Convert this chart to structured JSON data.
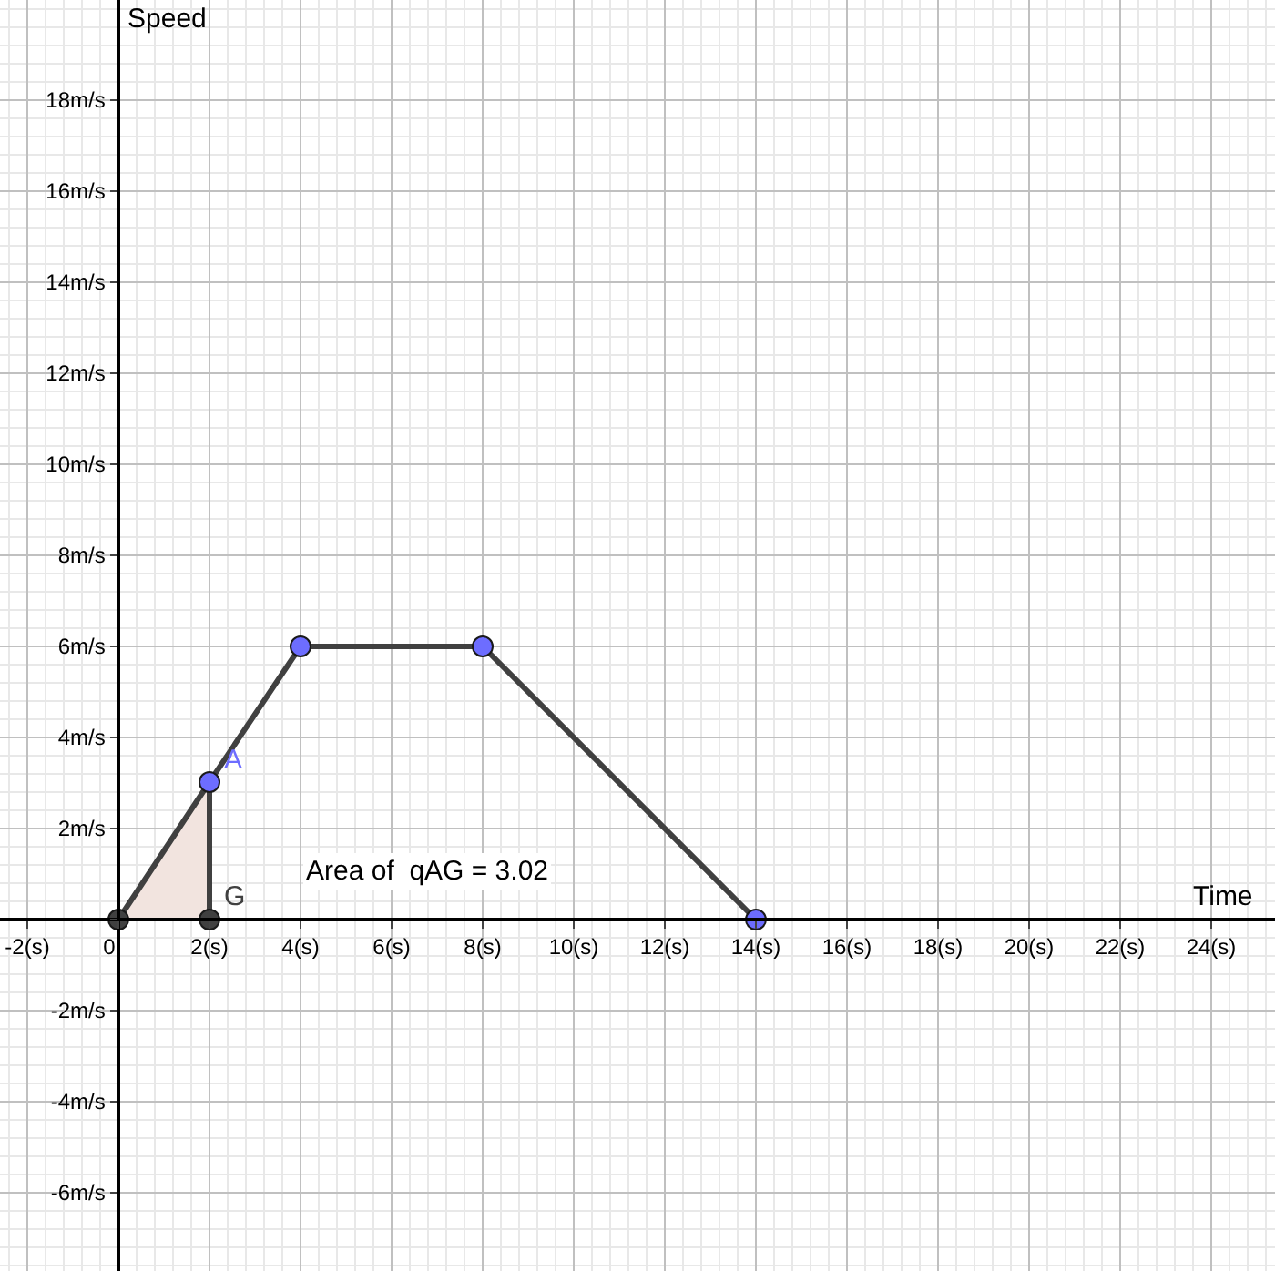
{
  "chart_data": {
    "type": "line",
    "xlabel": "Time",
    "ylabel": "Speed",
    "series": [
      {
        "type": "area",
        "color": "#f2e4df",
        "x": [
          0,
          2,
          2
        ],
        "values": [
          0,
          3.02,
          0
        ]
      },
      {
        "color": "#404040",
        "x": [
          0,
          2,
          4,
          8,
          14
        ],
        "values": [
          0,
          3.02,
          6,
          6,
          0
        ]
      },
      {
        "color": "#404040",
        "x": [
          2,
          2
        ],
        "values": [
          3.02,
          0
        ]
      },
      {
        "type": "scatter",
        "x": [
          0,
          2,
          4,
          8,
          14,
          2
        ],
        "values": [
          0,
          3.02,
          6,
          6,
          0,
          0
        ],
        "colors": [
          "#404040",
          "#6d6dff",
          "#6d6dff",
          "#6d6dff",
          "#6d6dff",
          "#404040"
        ],
        "marker": "circle"
      }
    ],
    "annotations": [
      {
        "text": "A",
        "x": 2,
        "y": 3.02
      },
      {
        "text": "G",
        "x": 2,
        "y": 0
      },
      "Area of  qAG = 3.02"
    ],
    "xlim": [
      -2.6,
      25.4
    ],
    "ylim": [
      -7.72,
      20.2
    ],
    "xticks": [
      {
        "value": -2,
        "label": "-2(s)"
      },
      0,
      {
        "value": 2,
        "label": "2(s)"
      },
      {
        "value": 4,
        "label": "4(s)"
      },
      {
        "value": 6,
        "label": "6(s)"
      },
      {
        "value": 8,
        "label": "8(s)"
      },
      {
        "value": 10,
        "label": "10(s)"
      },
      {
        "value": 12,
        "label": "12(s)"
      },
      {
        "value": 14,
        "label": "14(s)"
      },
      {
        "value": 16,
        "label": "16(s)"
      },
      {
        "value": 18,
        "label": "18(s)"
      },
      {
        "value": 20,
        "label": "20(s)"
      },
      {
        "value": 22,
        "label": "22(s)"
      },
      {
        "value": 24,
        "label": "24(s)"
      }
    ],
    "yticks": [
      {
        "value": -6,
        "label": "-6m/s"
      },
      {
        "value": -4,
        "label": "-4m/s"
      },
      {
        "value": -2,
        "label": "-2m/s"
      },
      {
        "value": 0,
        "label": null
      },
      {
        "value": 2,
        "label": "2m/s"
      },
      {
        "value": 4,
        "label": "4m/s"
      },
      {
        "value": 6,
        "label": "6m/s"
      },
      {
        "value": 8,
        "label": "8m/s"
      },
      {
        "value": 10,
        "label": "10m/s"
      },
      {
        "value": 12,
        "label": "12m/s"
      },
      {
        "value": 14,
        "label": "14m/s"
      },
      {
        "value": 16,
        "label": "16m/s"
      },
      {
        "value": 18,
        "label": "18m/s"
      }
    ],
    "grid": true
  }
}
